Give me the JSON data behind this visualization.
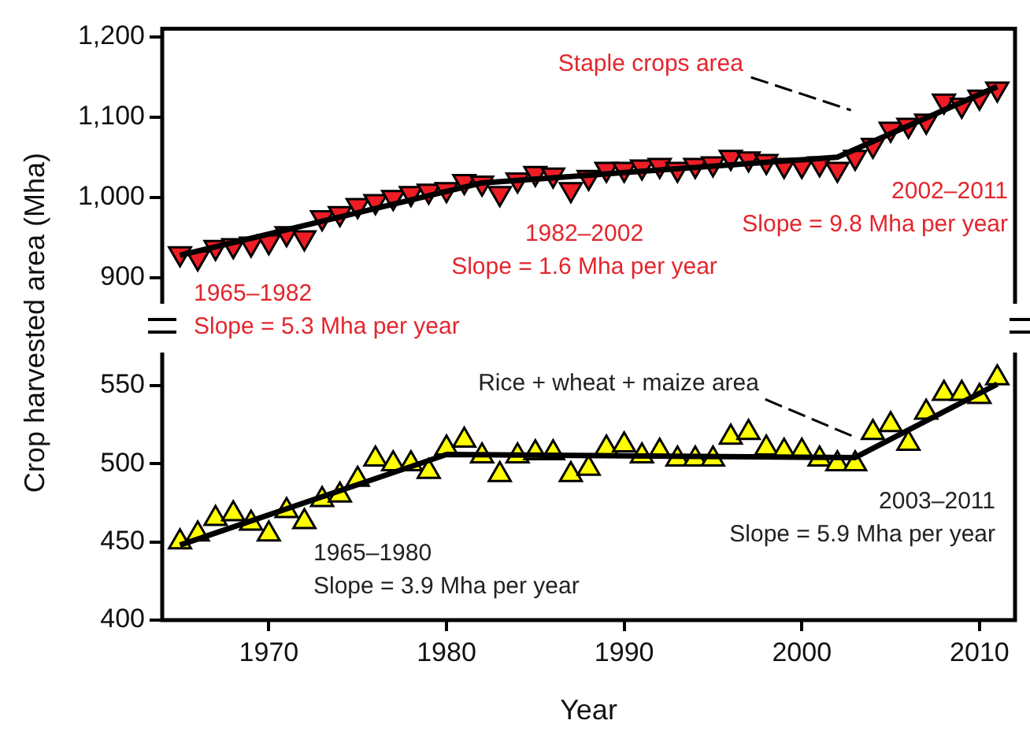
{
  "chart_data": [
    {
      "type": "scatter",
      "ylabel": "Crop harvested area (Mha)",
      "x": [
        1965,
        1966,
        1967,
        1968,
        1969,
        1970,
        1971,
        1972,
        1973,
        1974,
        1975,
        1976,
        1977,
        1978,
        1979,
        1980,
        1981,
        1982,
        1983,
        1984,
        1985,
        1986,
        1987,
        1988,
        1989,
        1990,
        1991,
        1992,
        1993,
        1994,
        1995,
        1996,
        1997,
        1998,
        1999,
        2000,
        2001,
        2002,
        2003,
        2004,
        2005,
        2006,
        2007,
        2008,
        2009,
        2010,
        2011
      ],
      "xlim": [
        1964,
        2012
      ],
      "xticks": [
        1970,
        1980,
        1990,
        2000,
        2010
      ],
      "ylim": [
        870,
        1210
      ],
      "yticks": [
        900,
        {
          "value": 1000,
          "label": "1,000"
        },
        {
          "value": 1100,
          "label": "1,100"
        },
        {
          "value": 1200,
          "label": "1,200"
        }
      ],
      "tick_labels": "y",
      "grid": false,
      "legend": false,
      "marker": "triangle",
      "annotations": [
        "Staple crops area",
        "1965–1982\nSlope = 5.3 Mha per year",
        "1982–2002\nSlope = 1.6 Mha per year",
        "2002–2011\nSlope = 9.8 Mha per year"
      ],
      "series": [
        {
          "color": "#ee1c25",
          "values": [
            930,
            925,
            938,
            940,
            942,
            945,
            955,
            950,
            975,
            980,
            990,
            995,
            1000,
            1005,
            1008,
            1010,
            1020,
            1018,
            1005,
            1022,
            1030,
            1028,
            1010,
            1025,
            1035,
            1035,
            1038,
            1040,
            1035,
            1040,
            1042,
            1050,
            1048,
            1045,
            1040,
            1040,
            1042,
            1035,
            1050,
            1065,
            1085,
            1090,
            1095,
            1120,
            1115,
            1125,
            1135
          ]
        },
        {
          "type": "line",
          "color": "#000000",
          "marker": "none",
          "x": [
            1965,
            1982,
            2002,
            2011
          ],
          "values": [
            928,
            1018,
            1050,
            1138
          ]
        }
      ]
    },
    {
      "type": "scatter",
      "xlabel": "Year",
      "x": [
        1965,
        1966,
        1967,
        1968,
        1969,
        1970,
        1971,
        1972,
        1973,
        1974,
        1975,
        1976,
        1977,
        1978,
        1979,
        1980,
        1981,
        1982,
        1983,
        1984,
        1985,
        1986,
        1987,
        1988,
        1989,
        1990,
        1991,
        1992,
        1993,
        1994,
        1995,
        1996,
        1997,
        1998,
        1999,
        2000,
        2001,
        2002,
        2003,
        2004,
        2005,
        2006,
        2007,
        2008,
        2009,
        2010,
        2011
      ],
      "xlim": [
        1964,
        2012
      ],
      "xticks": [
        1970,
        1980,
        1990,
        2000,
        2010
      ],
      "ylim": [
        400,
        570
      ],
      "yticks": [
        400,
        450,
        500,
        550
      ],
      "grid": false,
      "legend": false,
      "marker": "triangle",
      "annotations": [
        {
          "text": "Rice + wheat + maize area",
          "x": 2003,
          "y": 517
        },
        "1965–1980\nSlope = 3.9 Mha per year",
        "2003–2011\nSlope = 5.9 Mha per year"
      ],
      "series": [
        {
          "color": "#ffff00",
          "values": [
            450,
            455,
            465,
            468,
            462,
            455,
            470,
            463,
            477,
            480,
            490,
            503,
            500,
            500,
            495,
            510,
            515,
            505,
            493,
            505,
            507,
            507,
            493,
            497,
            510,
            512,
            505,
            508,
            503,
            503,
            503,
            517,
            520,
            510,
            508,
            508,
            503,
            500,
            500,
            520,
            525,
            513,
            533,
            545,
            545,
            543,
            555
          ]
        },
        {
          "type": "line",
          "color": "#000000",
          "marker": "none",
          "x": [
            1965,
            1980,
            2003,
            2011
          ],
          "values": [
            448,
            506,
            504,
            551
          ]
        }
      ]
    }
  ]
}
